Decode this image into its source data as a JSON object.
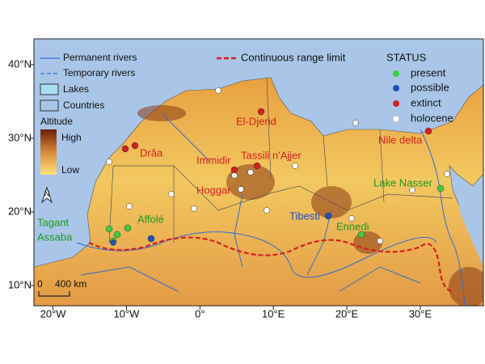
{
  "map": {
    "legend": {
      "permanent_rivers": "Permanent rivers",
      "temporary_rivers": "Temporary rivers",
      "lakes": "Lakes",
      "countries": "Countries"
    },
    "altitude": {
      "title": "Altitude",
      "high": "High",
      "low": "Low"
    },
    "range_limit": "Continuous range limit",
    "status": {
      "title": "STATUS",
      "items": [
        "present",
        "possible",
        "extinct",
        "holocene"
      ]
    },
    "places": [
      "Drâa",
      "El-Djerid",
      "Immidir",
      "Tassili n'Ajjer",
      "Hoggar",
      "Nile delta",
      "Lake Nasser",
      "Tibesti",
      "Ennedi",
      "Tagant",
      "Assaba",
      "Affolé"
    ],
    "scale": {
      "zero": "0",
      "distance": "400 km"
    },
    "north": "N",
    "lon_range": [
      -22.6,
      38.6
    ],
    "lat_range": [
      7.25,
      43.5
    ],
    "lon_ticks": [
      {
        "value": -20,
        "label": "20°W"
      },
      {
        "value": -10,
        "label": "10°W"
      },
      {
        "value": 0,
        "label": "0°"
      },
      {
        "value": 10,
        "label": "10°E"
      },
      {
        "value": 20,
        "label": "20°E"
      },
      {
        "value": 30,
        "label": "30°E"
      }
    ],
    "lat_ticks": [
      {
        "value": 40,
        "label": "40°N"
      },
      {
        "value": 30,
        "label": "30°N"
      },
      {
        "value": 20,
        "label": "20°N"
      },
      {
        "value": 10,
        "label": "10°N"
      }
    ]
  }
}
